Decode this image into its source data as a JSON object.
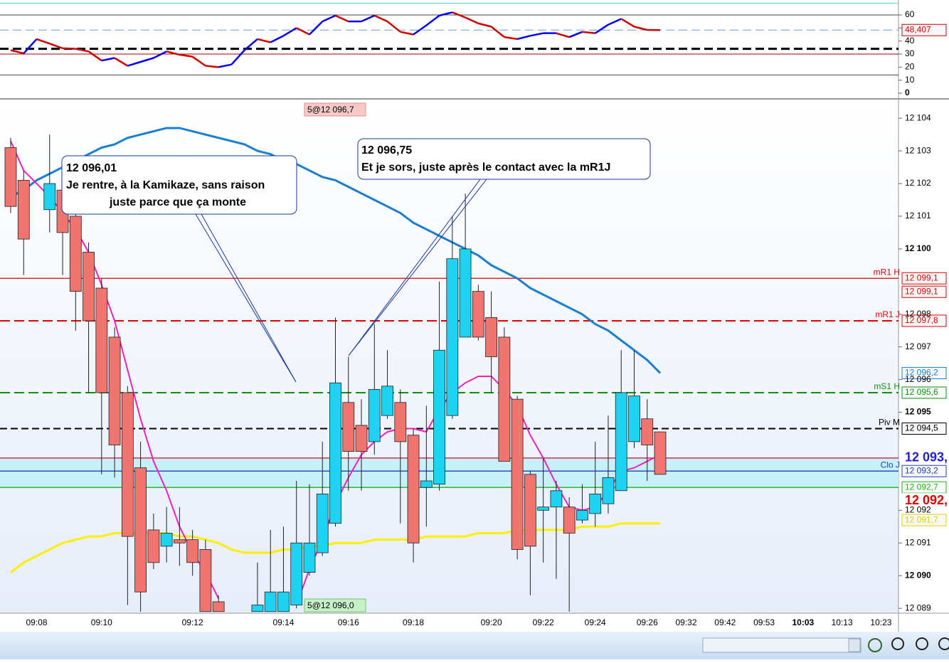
{
  "chart_data": {
    "type": "candlestick",
    "categories": [
      null,
      null,
      "09:08",
      null,
      null,
      null,
      null,
      "09:10",
      null,
      null,
      null,
      null,
      null,
      null,
      "09:12",
      null,
      null,
      null,
      null,
      null,
      null,
      "09:14",
      null,
      null,
      null,
      null,
      "09:16",
      null,
      null,
      null,
      null,
      "09:18",
      null,
      null,
      null,
      null,
      null,
      "09:20",
      null,
      null,
      null,
      "09:22",
      null,
      null,
      null,
      "09:24",
      null,
      null,
      null,
      "09:26",
      null,
      null,
      "09:32",
      null,
      null,
      "09:42",
      null,
      null,
      "09:53",
      null,
      null,
      "10:03",
      null,
      null,
      "10:13",
      null,
      null,
      "10:23"
    ],
    "open": [
      12103.1,
      12102.1,
      null,
      12101.2,
      12101.8,
      12101.0,
      12099.9,
      12098.8,
      12097.3,
      12095.6,
      12093.3,
      12091.4,
      12090.9,
      12091.1,
      12091.1,
      12090.8,
      12089.2,
      null,
      null,
      12088.9,
      12088.9,
      12088.9,
      12089.1,
      12090.1,
      12090.7,
      12091.6,
      12095.3,
      12094.6,
      12094.1,
      12094.9,
      12095.3,
      12094.3,
      12092.7,
      12092.8,
      12094.9,
      12097.3,
      12098.7,
      12097.9,
      12097.3,
      12095.4,
      12093.1,
      12092.0,
      12092.1,
      12092.1,
      12091.7,
      12091.9,
      12092.2,
      12092.6,
      12094.1,
      12094.8,
      12094.4,
      null,
      null,
      null,
      null,
      null,
      null,
      null,
      null,
      null,
      null,
      null,
      null,
      null,
      null,
      null,
      null,
      null
    ],
    "high": [
      12103.4,
      12102.4,
      null,
      12103.5,
      12102.6,
      12101.3,
      12100.2,
      12099.1,
      12097.6,
      12095.8,
      12094.1,
      12091.9,
      12092.1,
      12092.1,
      12091.4,
      12091.1,
      12089.4,
      null,
      null,
      12090.4,
      12091.4,
      12091.5,
      12092.9,
      12092.8,
      12094.1,
      12097.9,
      12096.7,
      12095.4,
      12097.7,
      12096.9,
      12095.7,
      12094.5,
      12095.2,
      12099.0,
      12101.0,
      12101.7,
      12098.9,
      12098.7,
      12097.6,
      12095.5,
      12093.2,
      12093.6,
      12092.9,
      12092.4,
      12092.8,
      12094.1,
      12094.9,
      12096.9,
      12096.9,
      12095.4,
      12094.4,
      null,
      null,
      null,
      null,
      null,
      null,
      null,
      null,
      null,
      null,
      null,
      null,
      null,
      null,
      null,
      null,
      null
    ],
    "low": [
      12101.1,
      12099.2,
      null,
      12100.5,
      12099.2,
      12097.5,
      12095.6,
      12093.1,
      12093.0,
      12089.1,
      12088.9,
      12090.2,
      12090.4,
      12090.3,
      12090.0,
      12088.9,
      12088.9,
      null,
      null,
      12088.9,
      12088.9,
      12088.9,
      12089.0,
      12090.0,
      12090.6,
      12091.5,
      12092.6,
      12092.6,
      12093.7,
      12094.8,
      12091.6,
      12090.4,
      12091.5,
      12092.6,
      12094.8,
      12097.3,
      12097.2,
      12095.6,
      12093.5,
      12090.5,
      12089.4,
      12090.4,
      12089.9,
      12088.9,
      12091.6,
      12091.5,
      12091.9,
      12092.6,
      12093.9,
      12092.9,
      12093.1,
      null,
      null,
      null,
      null,
      null,
      null,
      null,
      null,
      null,
      null,
      null,
      null,
      null,
      null,
      null,
      null,
      null
    ],
    "close": [
      12101.3,
      12100.3,
      null,
      12102.0,
      12100.5,
      12098.7,
      12097.8,
      12095.6,
      12094.0,
      12091.2,
      12089.5,
      12090.4,
      12091.3,
      12091.0,
      12090.4,
      12088.9,
      12088.9,
      null,
      null,
      12089.1,
      12089.5,
      12089.5,
      12091.0,
      12091.0,
      12092.5,
      12095.9,
      12093.8,
      12093.8,
      12095.7,
      12095.8,
      12094.1,
      12091.0,
      12092.9,
      12096.9,
      12099.7,
      12100.0,
      12097.3,
      12096.7,
      12093.5,
      12090.8,
      12090.9,
      12092.1,
      12092.6,
      12091.3,
      12092.0,
      12092.5,
      12093.0,
      12095.6,
      12095.5,
      12094.0,
      12093.1,
      null,
      null,
      null,
      null,
      null,
      null,
      null,
      null,
      null,
      null,
      null,
      null,
      null,
      null,
      null,
      null,
      null
    ],
    "up_color": "#1ed2f2",
    "down_color": "#f07470",
    "ylim": [
      12088.85,
      12104.57
    ],
    "yticks": [
      {
        "value": 12104,
        "label": "12 104"
      },
      {
        "value": 12103,
        "label": "12 103"
      },
      {
        "value": 12102,
        "label": "12 102"
      },
      {
        "value": 12101,
        "label": "12 101"
      },
      {
        "value": 12100,
        "label": "12 100"
      },
      {
        "value": 12098,
        "label": "12 098"
      },
      {
        "value": 12097,
        "label": "12 097"
      },
      {
        "value": 12096,
        "label": "12 096"
      },
      {
        "value": 12095,
        "label": "12 095"
      },
      {
        "value": 12092,
        "label": "12 092"
      },
      {
        "value": 12091,
        "label": "12 091"
      },
      {
        "value": 12090,
        "label": "12 090"
      },
      {
        "value": 12089,
        "label": "12 089"
      }
    ],
    "series": [
      {
        "color": "#1a7fd0",
        "values": [
          12101.6,
          12101.8,
          12102.1,
          12102.3,
          12102.5,
          12102.7,
          12102.9,
          12103.1,
          12103.2,
          12103.4,
          12103.5,
          12103.6,
          12103.7,
          12103.7,
          12103.6,
          12103.5,
          12103.4,
          12103.3,
          12103.2,
          12103.0,
          12102.9,
          12102.7,
          12102.6,
          12102.4,
          12102.2,
          12102.1,
          12101.9,
          12101.7,
          12101.5,
          12101.3,
          12101.1,
          12100.8,
          12100.6,
          12100.4,
          12100.2,
          12100.0,
          12099.8,
          12099.5,
          12099.3,
          12099.1,
          12098.8,
          12098.6,
          12098.4,
          12098.2,
          12098.0,
          12097.7,
          12097.5,
          12097.2,
          12096.9,
          12096.6,
          12096.2,
          null,
          null,
          null,
          null,
          null,
          null,
          null,
          null,
          null,
          null,
          null,
          null,
          null,
          null,
          null,
          null,
          null
        ]
      },
      {
        "color": "#ffee00",
        "values": [
          12090.1,
          12090.4,
          12090.6,
          12090.8,
          12091.0,
          12091.1,
          12091.2,
          12091.2,
          12091.3,
          12091.3,
          12091.3,
          12091.3,
          12091.3,
          12091.2,
          12091.2,
          12091.1,
          12091.0,
          12090.8,
          12090.7,
          12090.7,
          12090.7,
          12090.8,
          12090.8,
          12090.9,
          12090.9,
          12091.0,
          12091.0,
          12091.0,
          12091.1,
          12091.1,
          12091.1,
          12091.1,
          12091.2,
          12091.2,
          12091.2,
          12091.2,
          12091.3,
          12091.3,
          12091.3,
          12091.4,
          12091.4,
          12091.4,
          12091.4,
          12091.4,
          12091.5,
          12091.5,
          12091.5,
          12091.6,
          12091.6,
          12091.6,
          12091.6,
          null,
          null,
          null,
          null,
          null,
          null,
          null,
          null,
          null,
          null,
          null,
          null,
          null,
          null,
          null,
          null,
          null
        ]
      },
      {
        "color": "#f020c0",
        "values": [
          12103.3,
          12102.4,
          12102.0,
          12101.6,
          12101.1,
          12100.6,
          12099.9,
          12098.9,
          12097.8,
          12096.3,
          12094.8,
          12093.5,
          12092.6,
          12091.5,
          12090.7,
          12090.1,
          12089.3,
          null,
          null,
          null,
          null,
          null,
          12089.1,
          12090.2,
          12091.1,
          12092.2,
          12093.0,
          12093.7,
          12094.1,
          12094.4,
          12094.5,
          12094.5,
          12094.4,
          12095.1,
          12095.6,
          12095.9,
          12096.1,
          12096.1,
          12095.7,
          12095.2,
          12094.3,
          12093.6,
          12092.8,
          12092.1,
          12092.0,
          12092.1,
          12092.6,
          12093.2,
          12093.3,
          12093.5,
          12093.7,
          null,
          null,
          null,
          null,
          null,
          null,
          null,
          null,
          null,
          null,
          null,
          null,
          null,
          null,
          null,
          null,
          null
        ]
      }
    ],
    "levels": [
      {
        "name": "mR1 H",
        "value": 12099.1,
        "label": "12 099,1",
        "color": "#e00000",
        "line": "solid"
      },
      {
        "value": 12099.1,
        "label": "12 099,1",
        "color": "#e00000",
        "line": "none"
      },
      {
        "name": "mR1 J",
        "value": 12097.8,
        "label": "12 097,8",
        "color": "#e00000",
        "line": "dashed"
      },
      {
        "value": 12096.2,
        "label": "12 096,2",
        "color": "#1a7fd0",
        "line": "none"
      },
      {
        "name": "mS1 H",
        "value": 12095.6,
        "label": "12 095,6",
        "color": "#109010",
        "line": "dashed"
      },
      {
        "name": "Piv M",
        "value": 12094.5,
        "label": "12 094,5",
        "color": "#000000",
        "line": "dashed"
      },
      {
        "value": 12093.6,
        "label": "12 093,",
        "color": "#2020d0",
        "line": "solid",
        "line_color": "#e00020",
        "big": true
      },
      {
        "name": "Clo J",
        "value": 12093.2,
        "label": "12 093,2",
        "color": "#2040b0",
        "line": "solid"
      },
      {
        "value": 12092.7,
        "label": "12 092,7",
        "color": "#20b020",
        "line": "solid"
      },
      {
        "value": 12092.4,
        "label": "12 092,",
        "color": "#e00000",
        "line": "none",
        "big": true
      },
      {
        "value": 12091.7,
        "label": "12 091,7",
        "color": "#e0d000",
        "line": "none"
      }
    ],
    "annotations": [
      {
        "label": "5@12 096,7"
      },
      {
        "label": "5@12 096,0"
      },
      {
        "lines": [
          "12 096,01",
          "Je rentre, à la Kamikaze, sans raison",
          "juste parce que ça monte"
        ]
      },
      {
        "lines": [
          "12 096,75",
          "Et je sors, juste après le contact avec la mR1J"
        ]
      }
    ],
    "oscillator": {
      "values": [
        33,
        30.5,
        41.5,
        38,
        34.4,
        34,
        32,
        25,
        27,
        21,
        24,
        27,
        32,
        29.5,
        28,
        21,
        20,
        22,
        33,
        41.5,
        39,
        44,
        50,
        45,
        55,
        59.5,
        55,
        55,
        59.5,
        55,
        47,
        45,
        52,
        59.5,
        62,
        58,
        53.5,
        51,
        43,
        41.5,
        44,
        46,
        46,
        43,
        47,
        46,
        52.5,
        57,
        51,
        48.5,
        48.407,
        null,
        null,
        null,
        null,
        null,
        null,
        null,
        null,
        null,
        null,
        null,
        null,
        null,
        null,
        null,
        null,
        null
      ],
      "value_label": "48,407",
      "up_color": "#0000ee",
      "down_color": "#d00000",
      "ylim": [
        -3.8,
        69.8
      ],
      "yticks": [
        0,
        10,
        20,
        30,
        40,
        50,
        60
      ],
      "levels": [
        {
          "value": 69,
          "color": "#60d0e0",
          "line": "solid"
        },
        {
          "value": 60,
          "color": "#444444",
          "line": "solid"
        },
        {
          "value": 34,
          "color": "#000000",
          "line": "dashed"
        },
        {
          "value": 30,
          "color": "#a00000",
          "line": "solid"
        },
        {
          "value": 14,
          "color": "#444444",
          "line": "solid"
        }
      ]
    }
  }
}
